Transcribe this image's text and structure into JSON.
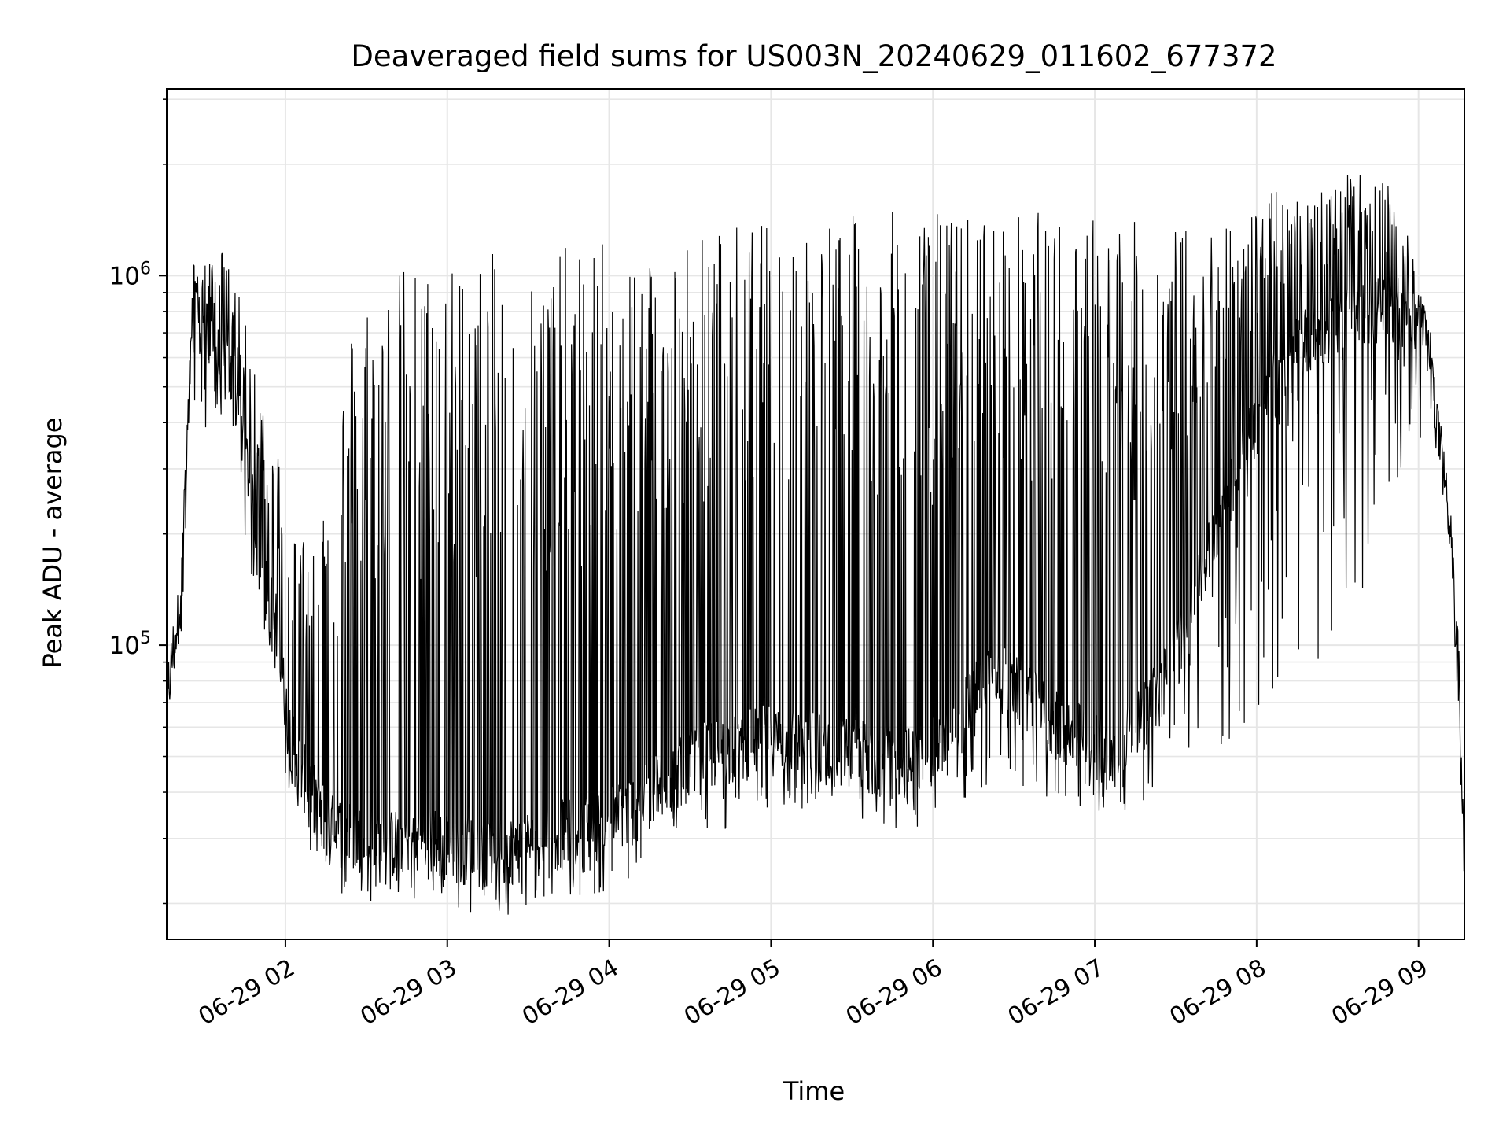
{
  "chart_data": {
    "type": "line",
    "title": "Deaveraged field sums for US003N_20240629_011602_677372",
    "xlabel": "Time",
    "ylabel": "Peak ADU - average",
    "x_scale": "time",
    "y_scale": "log",
    "xlim": [
      "2024-06-29 01:16",
      "2024-06-29 09:17"
    ],
    "ylim": [
      16000,
      3200000
    ],
    "grid": true,
    "legend": "none",
    "line_color": "#000000",
    "grid_color": "#e6e6e6",
    "x_ticks": [
      {
        "label": "06-29 02",
        "time": "2024-06-29 02:00"
      },
      {
        "label": "06-29 03",
        "time": "2024-06-29 03:00"
      },
      {
        "label": "06-29 04",
        "time": "2024-06-29 04:00"
      },
      {
        "label": "06-29 05",
        "time": "2024-06-29 05:00"
      },
      {
        "label": "06-29 06",
        "time": "2024-06-29 06:00"
      },
      {
        "label": "06-29 07",
        "time": "2024-06-29 07:00"
      },
      {
        "label": "06-29 08",
        "time": "2024-06-29 08:00"
      },
      {
        "label": "06-29 09",
        "time": "2024-06-29 09:00"
      }
    ],
    "y_ticks": [
      {
        "base": "10",
        "exp": "5",
        "value": 100000
      },
      {
        "base": "10",
        "exp": "6",
        "value": 1000000
      }
    ],
    "series": [
      {
        "envelope": {
          "x": [
            "2024-06-29 01:16",
            "2024-06-29 01:21",
            "2024-06-29 01:26",
            "2024-06-29 01:31",
            "2024-06-29 01:36",
            "2024-06-29 01:41",
            "2024-06-29 01:46",
            "2024-06-29 01:51",
            "2024-06-29 01:56",
            "2024-06-29 02:01",
            "2024-06-29 02:06",
            "2024-06-29 02:11",
            "2024-06-29 02:16",
            "2024-06-29 02:26",
            "2024-06-29 02:36",
            "2024-06-29 02:46",
            "2024-06-29 02:56",
            "2024-06-29 03:06",
            "2024-06-29 03:16",
            "2024-06-29 03:26",
            "2024-06-29 03:36",
            "2024-06-29 03:46",
            "2024-06-29 03:56",
            "2024-06-29 04:06",
            "2024-06-29 04:16",
            "2024-06-29 04:26",
            "2024-06-29 04:36",
            "2024-06-29 04:46",
            "2024-06-29 04:56",
            "2024-06-29 05:06",
            "2024-06-29 05:16",
            "2024-06-29 05:26",
            "2024-06-29 05:36",
            "2024-06-29 05:46",
            "2024-06-29 05:56",
            "2024-06-29 06:06",
            "2024-06-29 06:16",
            "2024-06-29 06:26",
            "2024-06-29 06:36",
            "2024-06-29 06:46",
            "2024-06-29 06:56",
            "2024-06-29 07:06",
            "2024-06-29 07:16",
            "2024-06-29 07:26",
            "2024-06-29 07:36",
            "2024-06-29 07:46",
            "2024-06-29 07:56",
            "2024-06-29 08:06",
            "2024-06-29 08:16",
            "2024-06-29 08:26",
            "2024-06-29 08:36",
            "2024-06-29 08:46",
            "2024-06-29 08:56",
            "2024-06-29 09:04",
            "2024-06-29 09:08",
            "2024-06-29 09:12",
            "2024-06-29 09:15",
            "2024-06-29 09:17"
          ],
          "base": [
            70000,
            130000,
            800000,
            620000,
            580000,
            500000,
            300000,
            150000,
            120000,
            60000,
            45000,
            38000,
            32000,
            30000,
            28000,
            30000,
            29000,
            28000,
            27000,
            28000,
            30000,
            31000,
            32000,
            35000,
            40000,
            45000,
            50000,
            52000,
            55000,
            55000,
            54000,
            52000,
            50000,
            48000,
            48000,
            55000,
            75000,
            80000,
            70000,
            60000,
            55000,
            50000,
            60000,
            80000,
            120000,
            220000,
            350000,
            500000,
            650000,
            700000,
            750000,
            800000,
            800000,
            650000,
            350000,
            180000,
            80000,
            22000
          ],
          "peak": [
            70000,
            150000,
            1100000,
            1100000,
            1200000,
            1000000,
            700000,
            500000,
            400000,
            250000,
            200000,
            250000,
            300000,
            900000,
            1000000,
            1100000,
            1100000,
            1100000,
            1150000,
            1200000,
            1200000,
            1200000,
            1250000,
            1250000,
            1300000,
            1300000,
            1350000,
            1400000,
            1400000,
            1450000,
            1450000,
            1450000,
            1500000,
            1500000,
            1500000,
            1500000,
            1500000,
            1500000,
            1500000,
            1500000,
            1500000,
            1450000,
            1400000,
            1350000,
            1400000,
            1450000,
            1500000,
            1700000,
            1800000,
            1800000,
            1900000,
            1900000,
            1400000,
            700000,
            400000,
            200000,
            100000,
            22000
          ],
          "trough": [
            70000,
            100000,
            300000,
            400000,
            350000,
            300000,
            180000,
            100000,
            70000,
            40000,
            30000,
            25000,
            22000,
            20000,
            20000,
            20000,
            20000,
            19000,
            18000,
            19000,
            20000,
            21000,
            21000,
            22000,
            25000,
            28000,
            30000,
            32000,
            34000,
            35000,
            34000,
            33000,
            32000,
            31000,
            31000,
            35000,
            40000,
            42000,
            38000,
            36000,
            34000,
            32000,
            36000,
            40000,
            48000,
            50000,
            55000,
            60000,
            70000,
            90000,
            120000,
            200000,
            300000,
            400000,
            300000,
            150000,
            70000,
            22000
          ]
        }
      }
    ]
  }
}
